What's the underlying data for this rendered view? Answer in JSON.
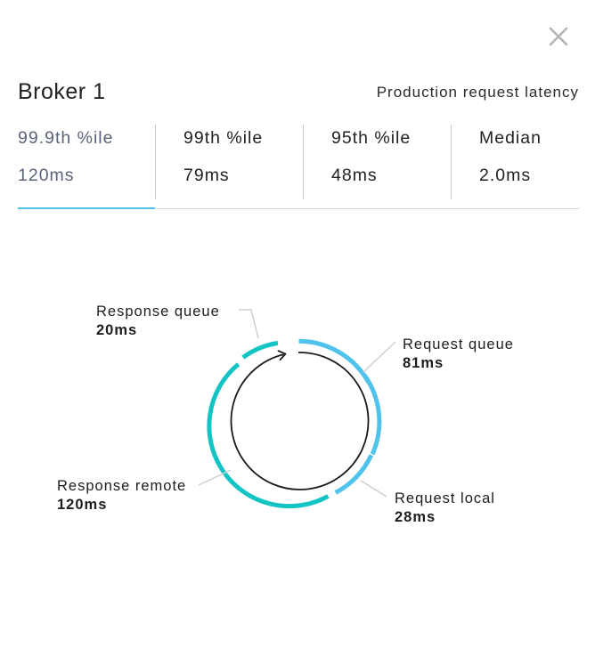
{
  "header": {
    "title": "Broker 1",
    "subtitle": "Production request latency"
  },
  "tabs": [
    {
      "label": "99.9th %ile",
      "value": "120ms",
      "active": true
    },
    {
      "label": "99th %ile",
      "value": "79ms",
      "active": false
    },
    {
      "label": "95th %ile",
      "value": "48ms",
      "active": false
    },
    {
      "label": "Median",
      "value": "2.0ms",
      "active": false
    }
  ],
  "breakdown": {
    "request_queue": {
      "label": "Request queue",
      "value": "81ms",
      "color": "#4fc3ec"
    },
    "request_local": {
      "label": "Request local",
      "value": "28ms",
      "color": "#4fc3ec"
    },
    "response_remote": {
      "label": "Response remote",
      "value": "120ms",
      "color": "#14c4c4"
    },
    "response_queue": {
      "label": "Response queue",
      "value": "20ms",
      "color": "#14c4c4"
    }
  },
  "icons": {
    "close": "close-icon",
    "flow_arrow": "cycle-arrow-icon"
  },
  "colors": {
    "accent": "#4fc3ec",
    "teal": "#14c4c4",
    "divider": "#d7d7d7"
  }
}
